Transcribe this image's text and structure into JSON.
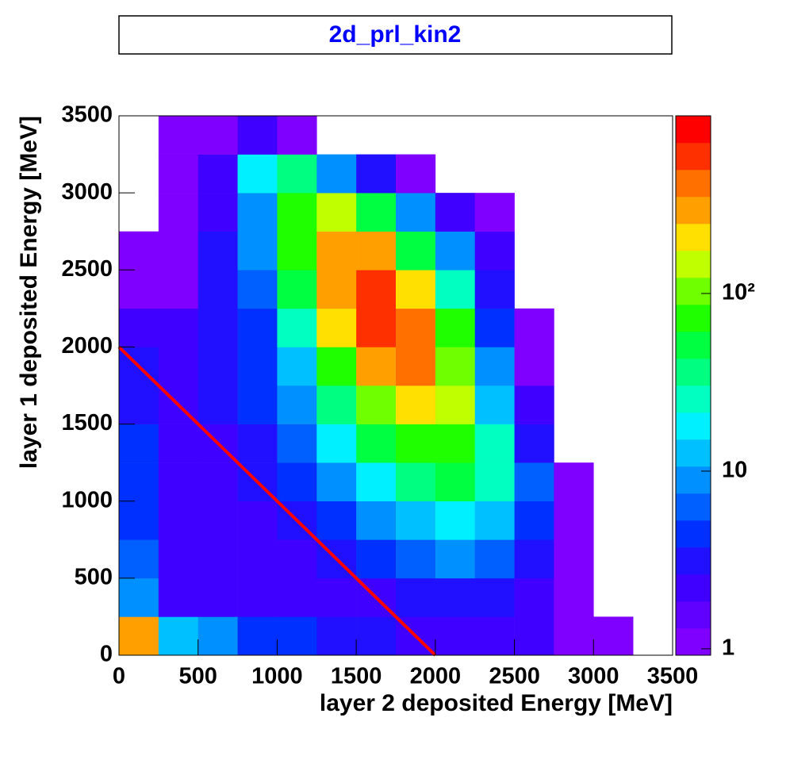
{
  "chart_data": {
    "type": "heatmap",
    "title": "2d_prl_kin2",
    "title_color": "#0000ff",
    "x_label": "layer 2 deposited Energy [MeV]",
    "y_label": "layer 1 deposited Energy [MeV]",
    "xlim": [
      0,
      3500
    ],
    "ylim": [
      0,
      3500
    ],
    "xticks": [
      0,
      500,
      1000,
      1500,
      2000,
      2500,
      3000,
      3500
    ],
    "yticks": [
      0,
      500,
      1000,
      1500,
      2000,
      2500,
      3000,
      3500
    ],
    "xbins": [
      0,
      250,
      500,
      750,
      1000,
      1250,
      1500,
      1750,
      2000,
      2250,
      2500,
      2750,
      3000,
      3250,
      3500
    ],
    "ybins": [
      0,
      250,
      500,
      750,
      1000,
      1250,
      1500,
      1750,
      2000,
      2250,
      2500,
      2750,
      3000,
      3250,
      3500
    ],
    "z": [
      [
        300,
        15,
        8,
        5,
        4,
        3,
        3,
        2,
        2,
        2,
        2,
        1,
        1,
        0
      ],
      [
        10,
        2,
        2,
        2,
        2,
        2,
        2,
        3,
        3,
        3,
        2,
        1,
        0,
        0
      ],
      [
        6,
        2,
        2,
        2,
        2,
        3,
        4,
        6,
        8,
        6,
        3,
        1,
        0,
        0
      ],
      [
        5,
        2,
        2,
        2,
        3,
        5,
        10,
        15,
        20,
        15,
        5,
        1,
        0,
        0
      ],
      [
        4,
        2,
        2,
        3,
        4,
        10,
        20,
        40,
        50,
        30,
        6,
        1,
        0,
        0
      ],
      [
        4,
        2,
        2,
        3,
        6,
        20,
        50,
        80,
        80,
        30,
        3,
        0,
        0,
        0
      ],
      [
        3,
        2,
        3,
        4,
        10,
        40,
        100,
        200,
        150,
        15,
        2,
        0,
        0,
        0
      ],
      [
        3,
        2,
        3,
        4,
        15,
        80,
        250,
        400,
        120,
        8,
        1,
        0,
        0,
        0
      ],
      [
        2,
        2,
        3,
        5,
        30,
        200,
        500,
        450,
        80,
        5,
        1,
        0,
        0,
        0
      ],
      [
        1,
        1,
        3,
        6,
        50,
        300,
        500,
        200,
        30,
        3,
        0,
        0,
        0,
        0
      ],
      [
        1,
        1,
        3,
        8,
        80,
        300,
        250,
        60,
        8,
        2,
        0,
        0,
        0,
        0
      ],
      [
        0,
        1,
        2,
        10,
        80,
        150,
        60,
        10,
        2,
        1,
        0,
        0,
        0,
        0
      ],
      [
        0,
        1,
        2,
        20,
        40,
        10,
        3,
        1,
        0,
        0,
        0,
        0,
        0,
        0
      ],
      [
        0,
        1,
        1,
        2,
        1,
        0,
        0,
        0,
        0,
        0,
        0,
        0,
        0,
        0
      ]
    ],
    "zlim": [
      0.92,
      1000
    ],
    "zlog": true,
    "zticks": [
      1,
      10,
      {
        "value": 100,
        "label": "10²"
      }
    ],
    "palette": [
      "#8000ff",
      "#6000ff",
      "#4000ff",
      "#2010ff",
      "#0030ff",
      "#0060ff",
      "#0090ff",
      "#00c0ff",
      "#00f0ff",
      "#00ffc0",
      "#00ff80",
      "#00ff40",
      "#20ff00",
      "#70ff00",
      "#c0ff00",
      "#ffe000",
      "#ffa000",
      "#ff7000",
      "#ff3000",
      "#ff0000"
    ],
    "line": {
      "x": [
        0,
        2000
      ],
      "y": [
        2000,
        0
      ],
      "color": "#ff0000"
    }
  }
}
